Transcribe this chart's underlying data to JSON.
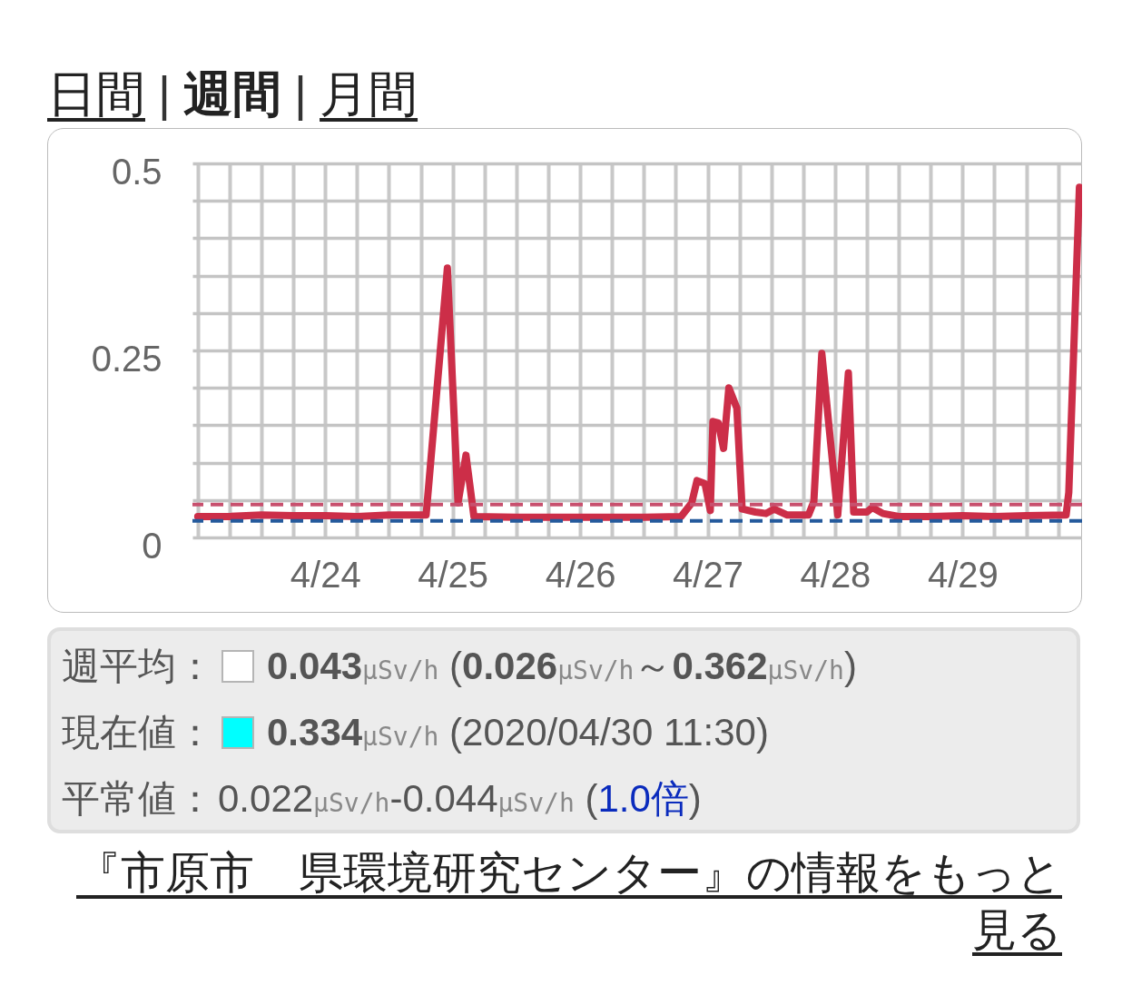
{
  "chart_data": {
    "type": "line",
    "x": [
      "2020-04-23T00:00",
      "2020-04-23T06:00",
      "2020-04-23T12:00",
      "2020-04-23T18:00",
      "2020-04-24T00:00",
      "2020-04-24T06:00",
      "2020-04-24T12:00",
      "2020-04-24T19:00",
      "2020-04-24T23:00",
      "2020-04-25T01:00",
      "2020-04-25T02:30",
      "2020-04-25T04:00",
      "2020-04-25T12:00",
      "2020-04-26T00:00",
      "2020-04-26T12:00",
      "2020-04-26T19:00",
      "2020-04-26T21:00",
      "2020-04-26T22:00",
      "2020-04-26T23:30",
      "2020-04-27T00:30",
      "2020-04-27T01:00",
      "2020-04-27T02:00",
      "2020-04-27T03:00",
      "2020-04-27T04:00",
      "2020-04-27T05:30",
      "2020-04-27T06:30",
      "2020-04-27T09:00",
      "2020-04-27T11:00",
      "2020-04-27T12:30",
      "2020-04-27T15:00",
      "2020-04-27T19:00",
      "2020-04-27T20:00",
      "2020-04-27T21:30",
      "2020-04-28T00:30",
      "2020-04-28T02:30",
      "2020-04-28T03:30",
      "2020-04-28T06:00",
      "2020-04-28T07:00",
      "2020-04-28T09:00",
      "2020-04-28T12:00",
      "2020-04-28T18:00",
      "2020-04-29T00:00",
      "2020-04-29T06:00",
      "2020-04-29T12:00",
      "2020-04-29T19:30",
      "2020-04-29T20:00",
      "2020-04-29T22:00"
    ],
    "series": [
      {
        "color": "#cc2e48",
        "values": [
          0.028,
          0.028,
          0.03,
          0.029,
          0.029,
          0.028,
          0.03,
          0.03,
          0.36,
          0.046,
          0.11,
          0.028,
          0.027,
          0.027,
          0.027,
          0.028,
          0.046,
          0.076,
          0.072,
          0.036,
          0.155,
          0.153,
          0.119,
          0.2,
          0.173,
          0.038,
          0.034,
          0.032,
          0.038,
          0.03,
          0.03,
          0.048,
          0.246,
          0.03,
          0.22,
          0.034,
          0.034,
          0.04,
          0.032,
          0.028,
          0.028,
          0.029,
          0.028,
          0.029,
          0.03,
          0.06,
          0.468
        ]
      }
    ],
    "xlim": [
      "2020-04-22T23:00",
      "2020-04-29T22:30"
    ],
    "xticks": [
      {
        "value": "2020-04-23T00:00",
        "label": null
      },
      {
        "value": "2020-04-23T06:00",
        "label": null
      },
      {
        "value": "2020-04-23T12:00",
        "label": null
      },
      {
        "value": "2020-04-23T18:00",
        "label": null
      },
      {
        "value": "2020-04-24T00:00",
        "label": "4/24"
      },
      {
        "value": "2020-04-24T06:00",
        "label": null
      },
      {
        "value": "2020-04-24T12:00",
        "label": null
      },
      {
        "value": "2020-04-24T18:00",
        "label": null
      },
      {
        "value": "2020-04-25T00:00",
        "label": "4/25"
      },
      {
        "value": "2020-04-25T06:00",
        "label": null
      },
      {
        "value": "2020-04-25T12:00",
        "label": null
      },
      {
        "value": "2020-04-25T18:00",
        "label": null
      },
      {
        "value": "2020-04-26T00:00",
        "label": "4/26"
      },
      {
        "value": "2020-04-26T06:00",
        "label": null
      },
      {
        "value": "2020-04-26T12:00",
        "label": null
      },
      {
        "value": "2020-04-26T18:00",
        "label": null
      },
      {
        "value": "2020-04-27T00:00",
        "label": "4/27"
      },
      {
        "value": "2020-04-27T06:00",
        "label": null
      },
      {
        "value": "2020-04-27T12:00",
        "label": null
      },
      {
        "value": "2020-04-27T18:00",
        "label": null
      },
      {
        "value": "2020-04-28T00:00",
        "label": "4/28"
      },
      {
        "value": "2020-04-28T06:00",
        "label": null
      },
      {
        "value": "2020-04-28T12:00",
        "label": null
      },
      {
        "value": "2020-04-28T18:00",
        "label": null
      },
      {
        "value": "2020-04-29T00:00",
        "label": "4/29"
      },
      {
        "value": "2020-04-29T06:00",
        "label": null
      },
      {
        "value": "2020-04-29T12:00",
        "label": null
      },
      {
        "value": "2020-04-29T18:00",
        "label": null
      }
    ],
    "ylim": [
      0,
      0.5
    ],
    "yticks": [
      0,
      {
        "value": 0.05,
        "label": null
      },
      {
        "value": 0.1,
        "label": null
      },
      {
        "value": 0.15,
        "label": null
      },
      {
        "value": 0.2,
        "label": null
      },
      0.25,
      {
        "value": 0.3,
        "label": null
      },
      {
        "value": 0.35,
        "label": null
      },
      {
        "value": 0.4,
        "label": null
      },
      {
        "value": 0.45,
        "label": null
      },
      0.5
    ],
    "grid": true,
    "ref_lines": [
      {
        "axis": "y",
        "value": 0.044,
        "color": "#c8506e",
        "line_style": "dashed"
      },
      {
        "axis": "y",
        "value": 0.022,
        "color": "#245a9c",
        "line_style": "dashed"
      }
    ],
    "annotations": [
      "日間 | 週間 | 月間",
      "週平均：",
      "0.043μSv/h (0.026μSv/h～0.362μSv/h)",
      "現在値：",
      "0.334μSv/h (2020/04/30 11:30)",
      "平常値：",
      "0.022μSv/h-0.044μSv/h (1.0倍)",
      "『市原市　県環境研究センター』の情報をもっと見る"
    ]
  }
}
